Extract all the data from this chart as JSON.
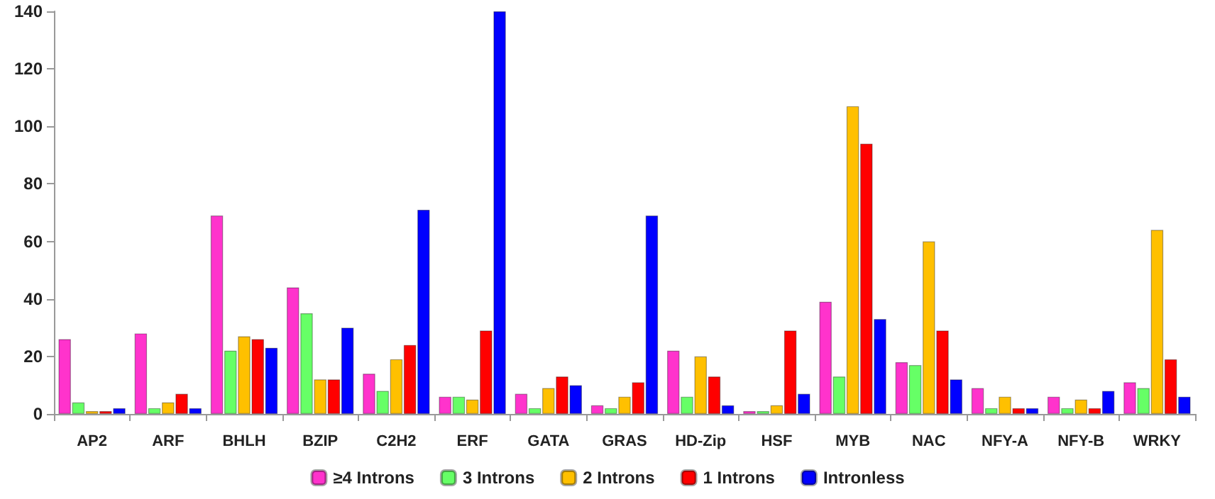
{
  "chart_data": {
    "type": "bar",
    "categories": [
      "AP2",
      "ARF",
      "BHLH",
      "BZIP",
      "C2H2",
      "ERF",
      "GATA",
      "GRAS",
      "HD-Zip",
      "HSF",
      "MYB",
      "NAC",
      "NFY-A",
      "NFY-B",
      "WRKY"
    ],
    "series": [
      {
        "name": "≥4 Introns",
        "color": "#ff33cc",
        "values": [
          26,
          28,
          69,
          44,
          14,
          6,
          7,
          3,
          22,
          1,
          39,
          18,
          9,
          6,
          11
        ]
      },
      {
        "name": "3 Introns",
        "color": "#66ff66",
        "values": [
          4,
          2,
          22,
          35,
          8,
          6,
          2,
          2,
          6,
          1,
          13,
          17,
          2,
          2,
          9
        ]
      },
      {
        "name": "2 Introns",
        "color": "#ffc000",
        "values": [
          1,
          4,
          27,
          12,
          19,
          5,
          9,
          6,
          20,
          3,
          107,
          60,
          6,
          5,
          64
        ]
      },
      {
        "name": "1 Introns",
        "color": "#ff0000",
        "values": [
          1,
          7,
          26,
          12,
          24,
          29,
          13,
          11,
          13,
          29,
          94,
          29,
          2,
          2,
          19
        ]
      },
      {
        "name": "Intronless",
        "color": "#0000ff",
        "values": [
          2,
          2,
          23,
          30,
          71,
          140,
          10,
          69,
          3,
          7,
          33,
          12,
          2,
          8,
          6
        ]
      }
    ],
    "ylim": [
      0,
      140
    ],
    "yticks": [
      0,
      20,
      40,
      60,
      80,
      100,
      120,
      140
    ],
    "grid": false,
    "legend": "bottom"
  }
}
